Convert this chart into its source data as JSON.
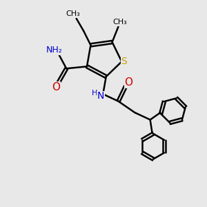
{
  "bg_color": "#e8e8e8",
  "bond_color": "#000000",
  "bond_width": 1.8,
  "S_color": "#c8a000",
  "N_color": "#0000cc",
  "O_color": "#cc0000",
  "C_color": "#000000",
  "font_size": 9,
  "fig_size": [
    3.0,
    3.0
  ],
  "dpi": 100,
  "xlim": [
    0,
    10
  ],
  "ylim": [
    0,
    10
  ]
}
